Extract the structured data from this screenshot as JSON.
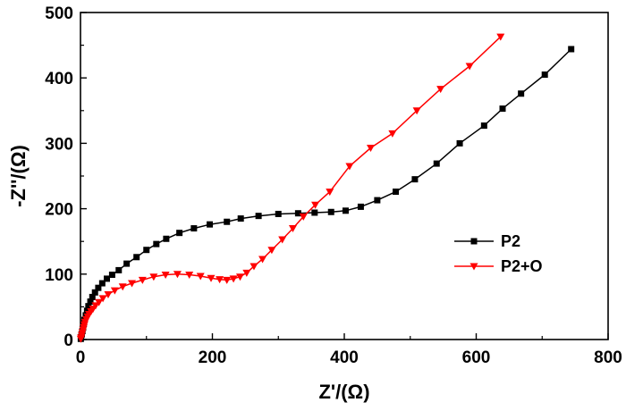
{
  "chart_data": {
    "type": "line",
    "title": "",
    "xlabel": "Z'/(Ω)",
    "ylabel": "-Z''/(Ω)",
    "xlim": [
      0,
      800
    ],
    "ylim": [
      0,
      500
    ],
    "xticks": [
      0,
      200,
      400,
      600,
      800
    ],
    "yticks": [
      0,
      100,
      200,
      300,
      400,
      500
    ],
    "grid": false,
    "legend": "center-right",
    "series": [
      {
        "name": "P2",
        "color": "#000000",
        "marker": "square",
        "points": [
          [
            0.5,
            1
          ],
          [
            1,
            4
          ],
          [
            2,
            8
          ],
          [
            3,
            13
          ],
          [
            4,
            18
          ],
          [
            5,
            24
          ],
          [
            6,
            30
          ],
          [
            8,
            37
          ],
          [
            10,
            44
          ],
          [
            12,
            51
          ],
          [
            15,
            58
          ],
          [
            18,
            65
          ],
          [
            22,
            72
          ],
          [
            27,
            79
          ],
          [
            33,
            86
          ],
          [
            40,
            93
          ],
          [
            48,
            99
          ],
          [
            58,
            106
          ],
          [
            70,
            116
          ],
          [
            85,
            126
          ],
          [
            100,
            137
          ],
          [
            115,
            146
          ],
          [
            130,
            154
          ],
          [
            150,
            163
          ],
          [
            172,
            170
          ],
          [
            196,
            176
          ],
          [
            222,
            180
          ],
          [
            243,
            185
          ],
          [
            270,
            189
          ],
          [
            300,
            192
          ],
          [
            330,
            193
          ],
          [
            355,
            194
          ],
          [
            380,
            195
          ],
          [
            402,
            197
          ],
          [
            425,
            203
          ],
          [
            450,
            213
          ],
          [
            478,
            226
          ],
          [
            507,
            245
          ],
          [
            540,
            269
          ],
          [
            575,
            300
          ],
          [
            612,
            327
          ],
          [
            640,
            353
          ],
          [
            668,
            376
          ],
          [
            704,
            405
          ],
          [
            744,
            444
          ]
        ]
      },
      {
        "name": "P2+O",
        "color": "#ff0000",
        "marker": "triangle-down",
        "points": [
          [
            0.5,
            1
          ],
          [
            1,
            3
          ],
          [
            2,
            7
          ],
          [
            3,
            11
          ],
          [
            4,
            15
          ],
          [
            5,
            19
          ],
          [
            6,
            23
          ],
          [
            7,
            27
          ],
          [
            9,
            31
          ],
          [
            11,
            35
          ],
          [
            13,
            39
          ],
          [
            16,
            43
          ],
          [
            19,
            47
          ],
          [
            23,
            52
          ],
          [
            28,
            57
          ],
          [
            34,
            63
          ],
          [
            42,
            69
          ],
          [
            52,
            75
          ],
          [
            64,
            81
          ],
          [
            78,
            86
          ],
          [
            94,
            91
          ],
          [
            111,
            96
          ],
          [
            129,
            99
          ],
          [
            147,
            100
          ],
          [
            165,
            99
          ],
          [
            182,
            97
          ],
          [
            198,
            94
          ],
          [
            211,
            92
          ],
          [
            222,
            91
          ],
          [
            232,
            93
          ],
          [
            242,
            96
          ],
          [
            252,
            102
          ],
          [
            263,
            112
          ],
          [
            276,
            123
          ],
          [
            290,
            137
          ],
          [
            306,
            153
          ],
          [
            322,
            170
          ],
          [
            338,
            188
          ],
          [
            356,
            206
          ],
          [
            378,
            226
          ],
          [
            408,
            265
          ],
          [
            440,
            293
          ],
          [
            473,
            315
          ],
          [
            510,
            350
          ],
          [
            546,
            383
          ],
          [
            590,
            418
          ],
          [
            637,
            463
          ]
        ]
      }
    ]
  }
}
